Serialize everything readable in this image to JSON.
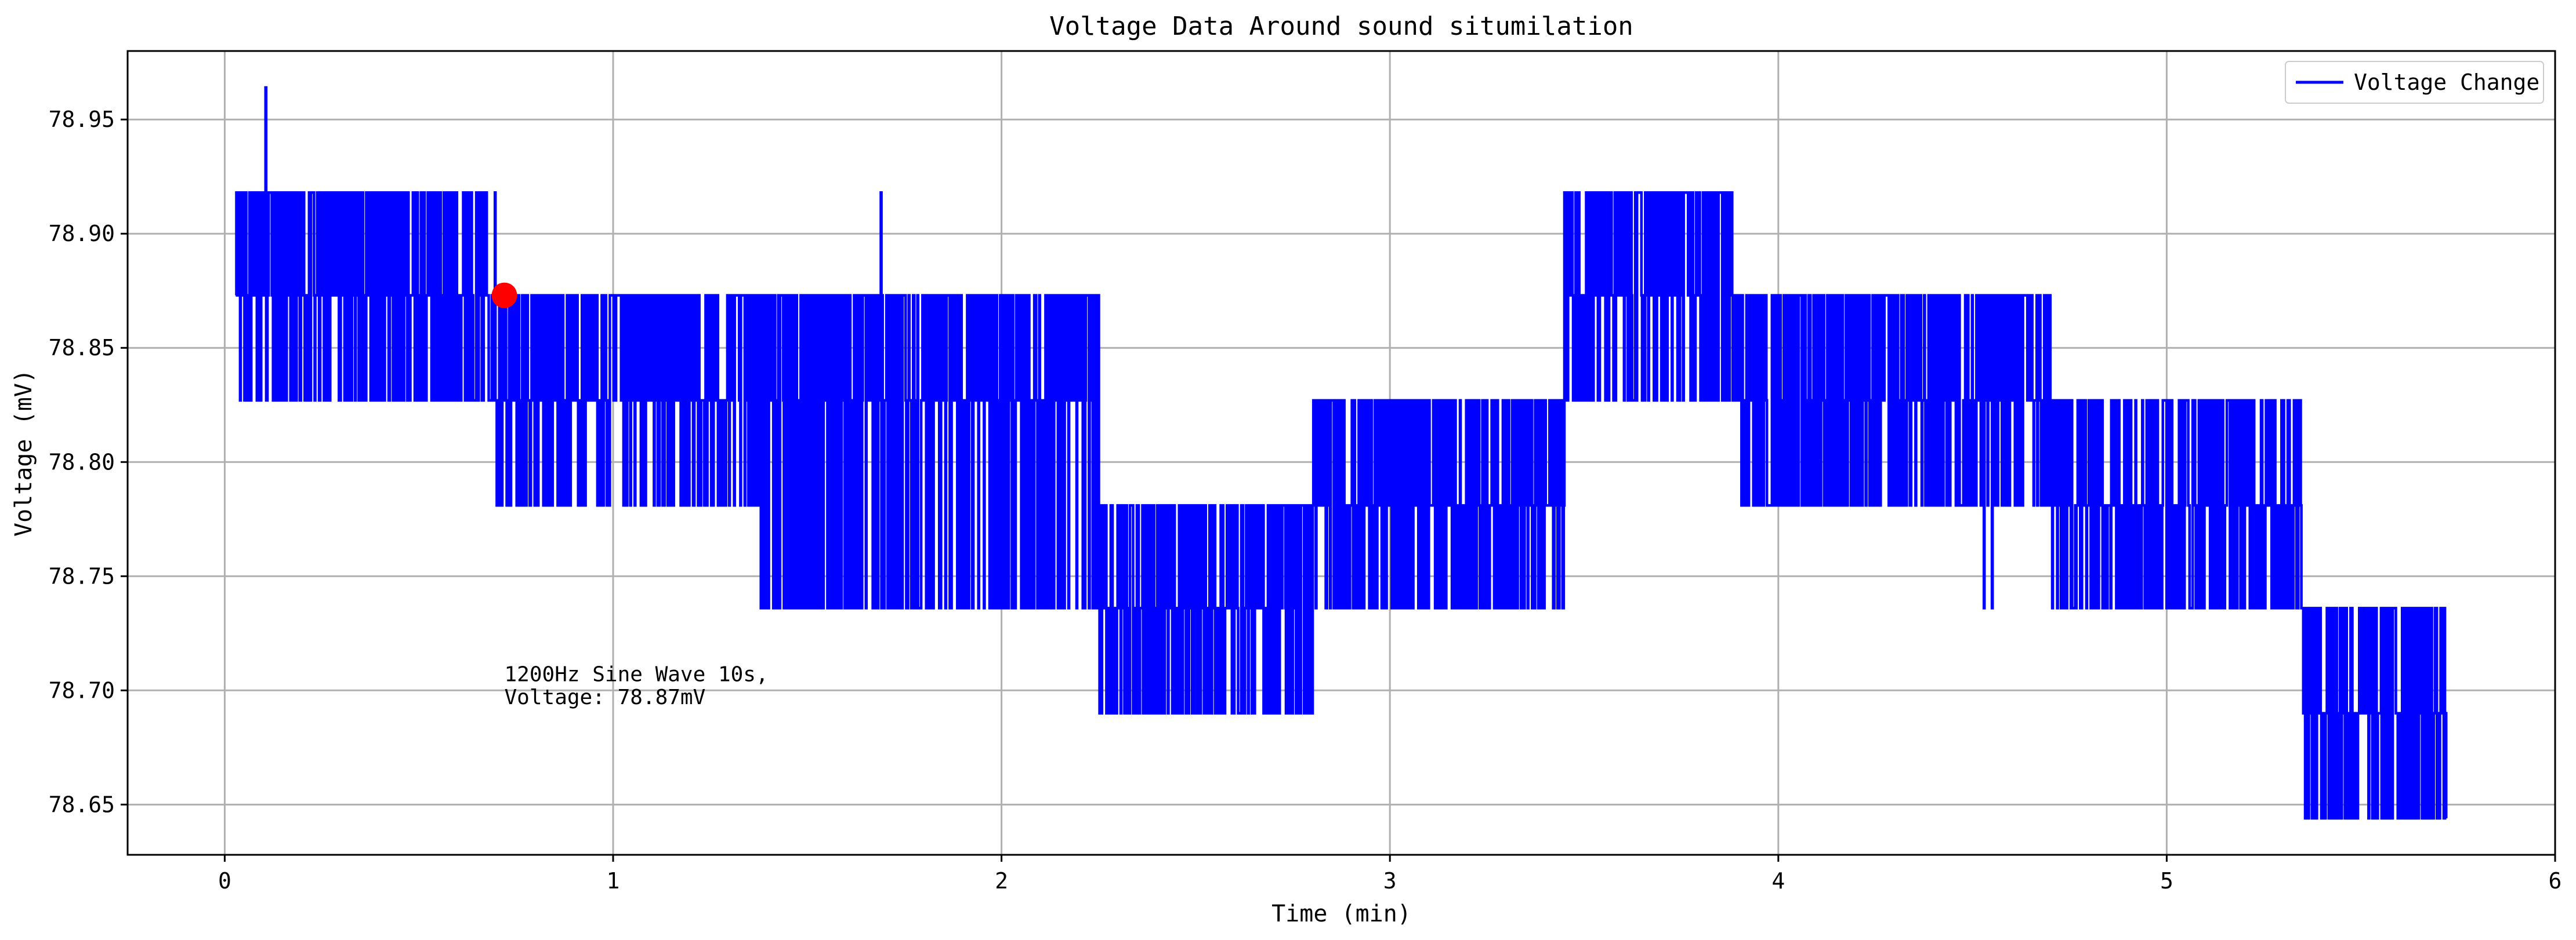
{
  "chart_data": {
    "type": "line",
    "title": "Voltage Data Around sound situmilation",
    "xlabel": "Time (min)",
    "ylabel": "Voltage (mV)",
    "xlim": [
      -0.25,
      6.0
    ],
    "ylim": [
      78.628,
      78.98
    ],
    "x_ticks": [
      0,
      1,
      2,
      3,
      4,
      5,
      6
    ],
    "y_ticks": [
      78.65,
      78.7,
      78.75,
      78.8,
      78.85,
      78.9,
      78.95
    ],
    "grid": true,
    "legend_position": "top-right",
    "levels": [
      78.644,
      78.69,
      78.736,
      78.781,
      78.827,
      78.873,
      78.918,
      78.964
    ],
    "series": [
      {
        "name": "Voltage Change",
        "color": "#0000ff",
        "x_start": 0.03,
        "x_end": 5.72,
        "segments": [
          {
            "x": [
              0.03,
              0.7
            ],
            "levels": [
              78.827,
              78.918
            ],
            "base": 78.873
          },
          {
            "x": [
              0.7,
              1.38
            ],
            "levels": [
              78.781,
              78.873
            ],
            "base": 78.827
          },
          {
            "x": [
              1.38,
              2.25
            ],
            "levels": [
              78.736,
              78.873
            ],
            "base": 78.827
          },
          {
            "x": [
              2.25,
              2.8
            ],
            "levels": [
              78.69,
              78.781
            ],
            "base": 78.736
          },
          {
            "x": [
              2.8,
              3.45
            ],
            "levels": [
              78.736,
              78.827
            ],
            "base": 78.781
          },
          {
            "x": [
              3.45,
              3.9
            ],
            "levels": [
              78.827,
              78.918
            ],
            "base": 78.873
          },
          {
            "x": [
              3.9,
              4.7
            ],
            "levels": [
              78.781,
              78.873
            ],
            "base": 78.827
          },
          {
            "x": [
              4.7,
              5.35
            ],
            "levels": [
              78.736,
              78.827
            ],
            "base": 78.781
          },
          {
            "x": [
              5.35,
              5.72
            ],
            "levels": [
              78.644,
              78.736
            ],
            "base": 78.69
          }
        ],
        "spikes": [
          {
            "x": 0.105,
            "y": 78.964
          },
          {
            "x": 0.49,
            "y": 78.827
          },
          {
            "x": 1.48,
            "y": 78.736
          },
          {
            "x": 1.69,
            "y": 78.918
          },
          {
            "x": 3.45,
            "y": 78.918
          },
          {
            "x": 3.64,
            "y": 78.918
          },
          {
            "x": 3.67,
            "y": 78.918
          },
          {
            "x": 3.76,
            "y": 78.918
          },
          {
            "x": 4.53,
            "y": 78.736
          },
          {
            "x": 4.55,
            "y": 78.736
          },
          {
            "x": 5.68,
            "y": 78.644
          }
        ]
      }
    ],
    "marker": {
      "x": 0.72,
      "y": 78.873,
      "color": "#ff0000"
    },
    "annotation": {
      "x": 0.72,
      "lines": [
        "1200Hz Sine Wave 10s,",
        "Voltage: 78.87mV"
      ]
    }
  }
}
